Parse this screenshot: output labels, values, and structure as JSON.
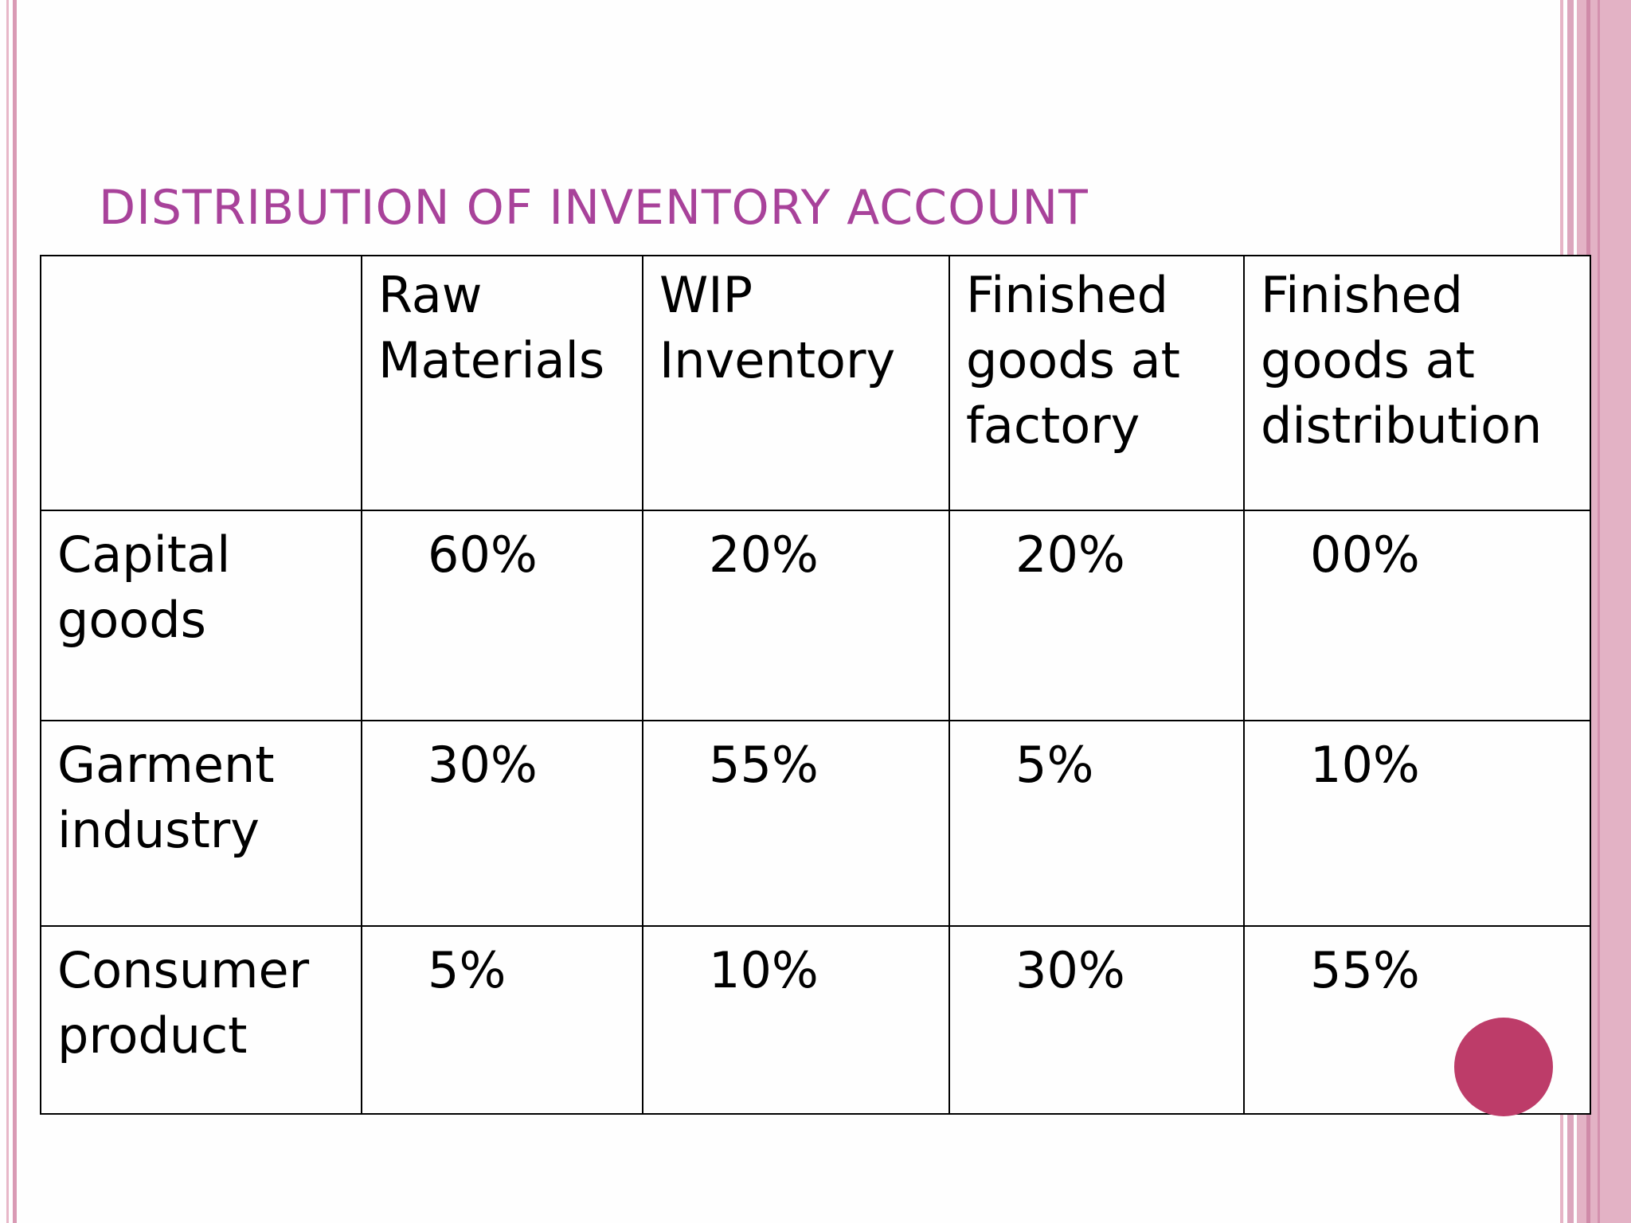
{
  "slide": {
    "title": "DISTRIBUTION OF INVENTORY ACCOUNT",
    "accent_color": "#a8429a",
    "dot_color": "#bd3c69",
    "stripe_color": "#e3b2c5"
  },
  "table": {
    "headers": [
      "",
      "Raw Materials",
      "WIP Inventory",
      "Finished goods at factory",
      "Finished goods at distribution"
    ],
    "rows": [
      {
        "label": "Capital goods",
        "values": [
          "60%",
          "20%",
          "20%",
          "00%"
        ]
      },
      {
        "label": "Garment industry",
        "values": [
          "30%",
          "55%",
          "5%",
          "10%"
        ]
      },
      {
        "label": "Consumer product",
        "values": [
          "5%",
          "10%",
          "30%",
          "55%"
        ]
      }
    ]
  }
}
